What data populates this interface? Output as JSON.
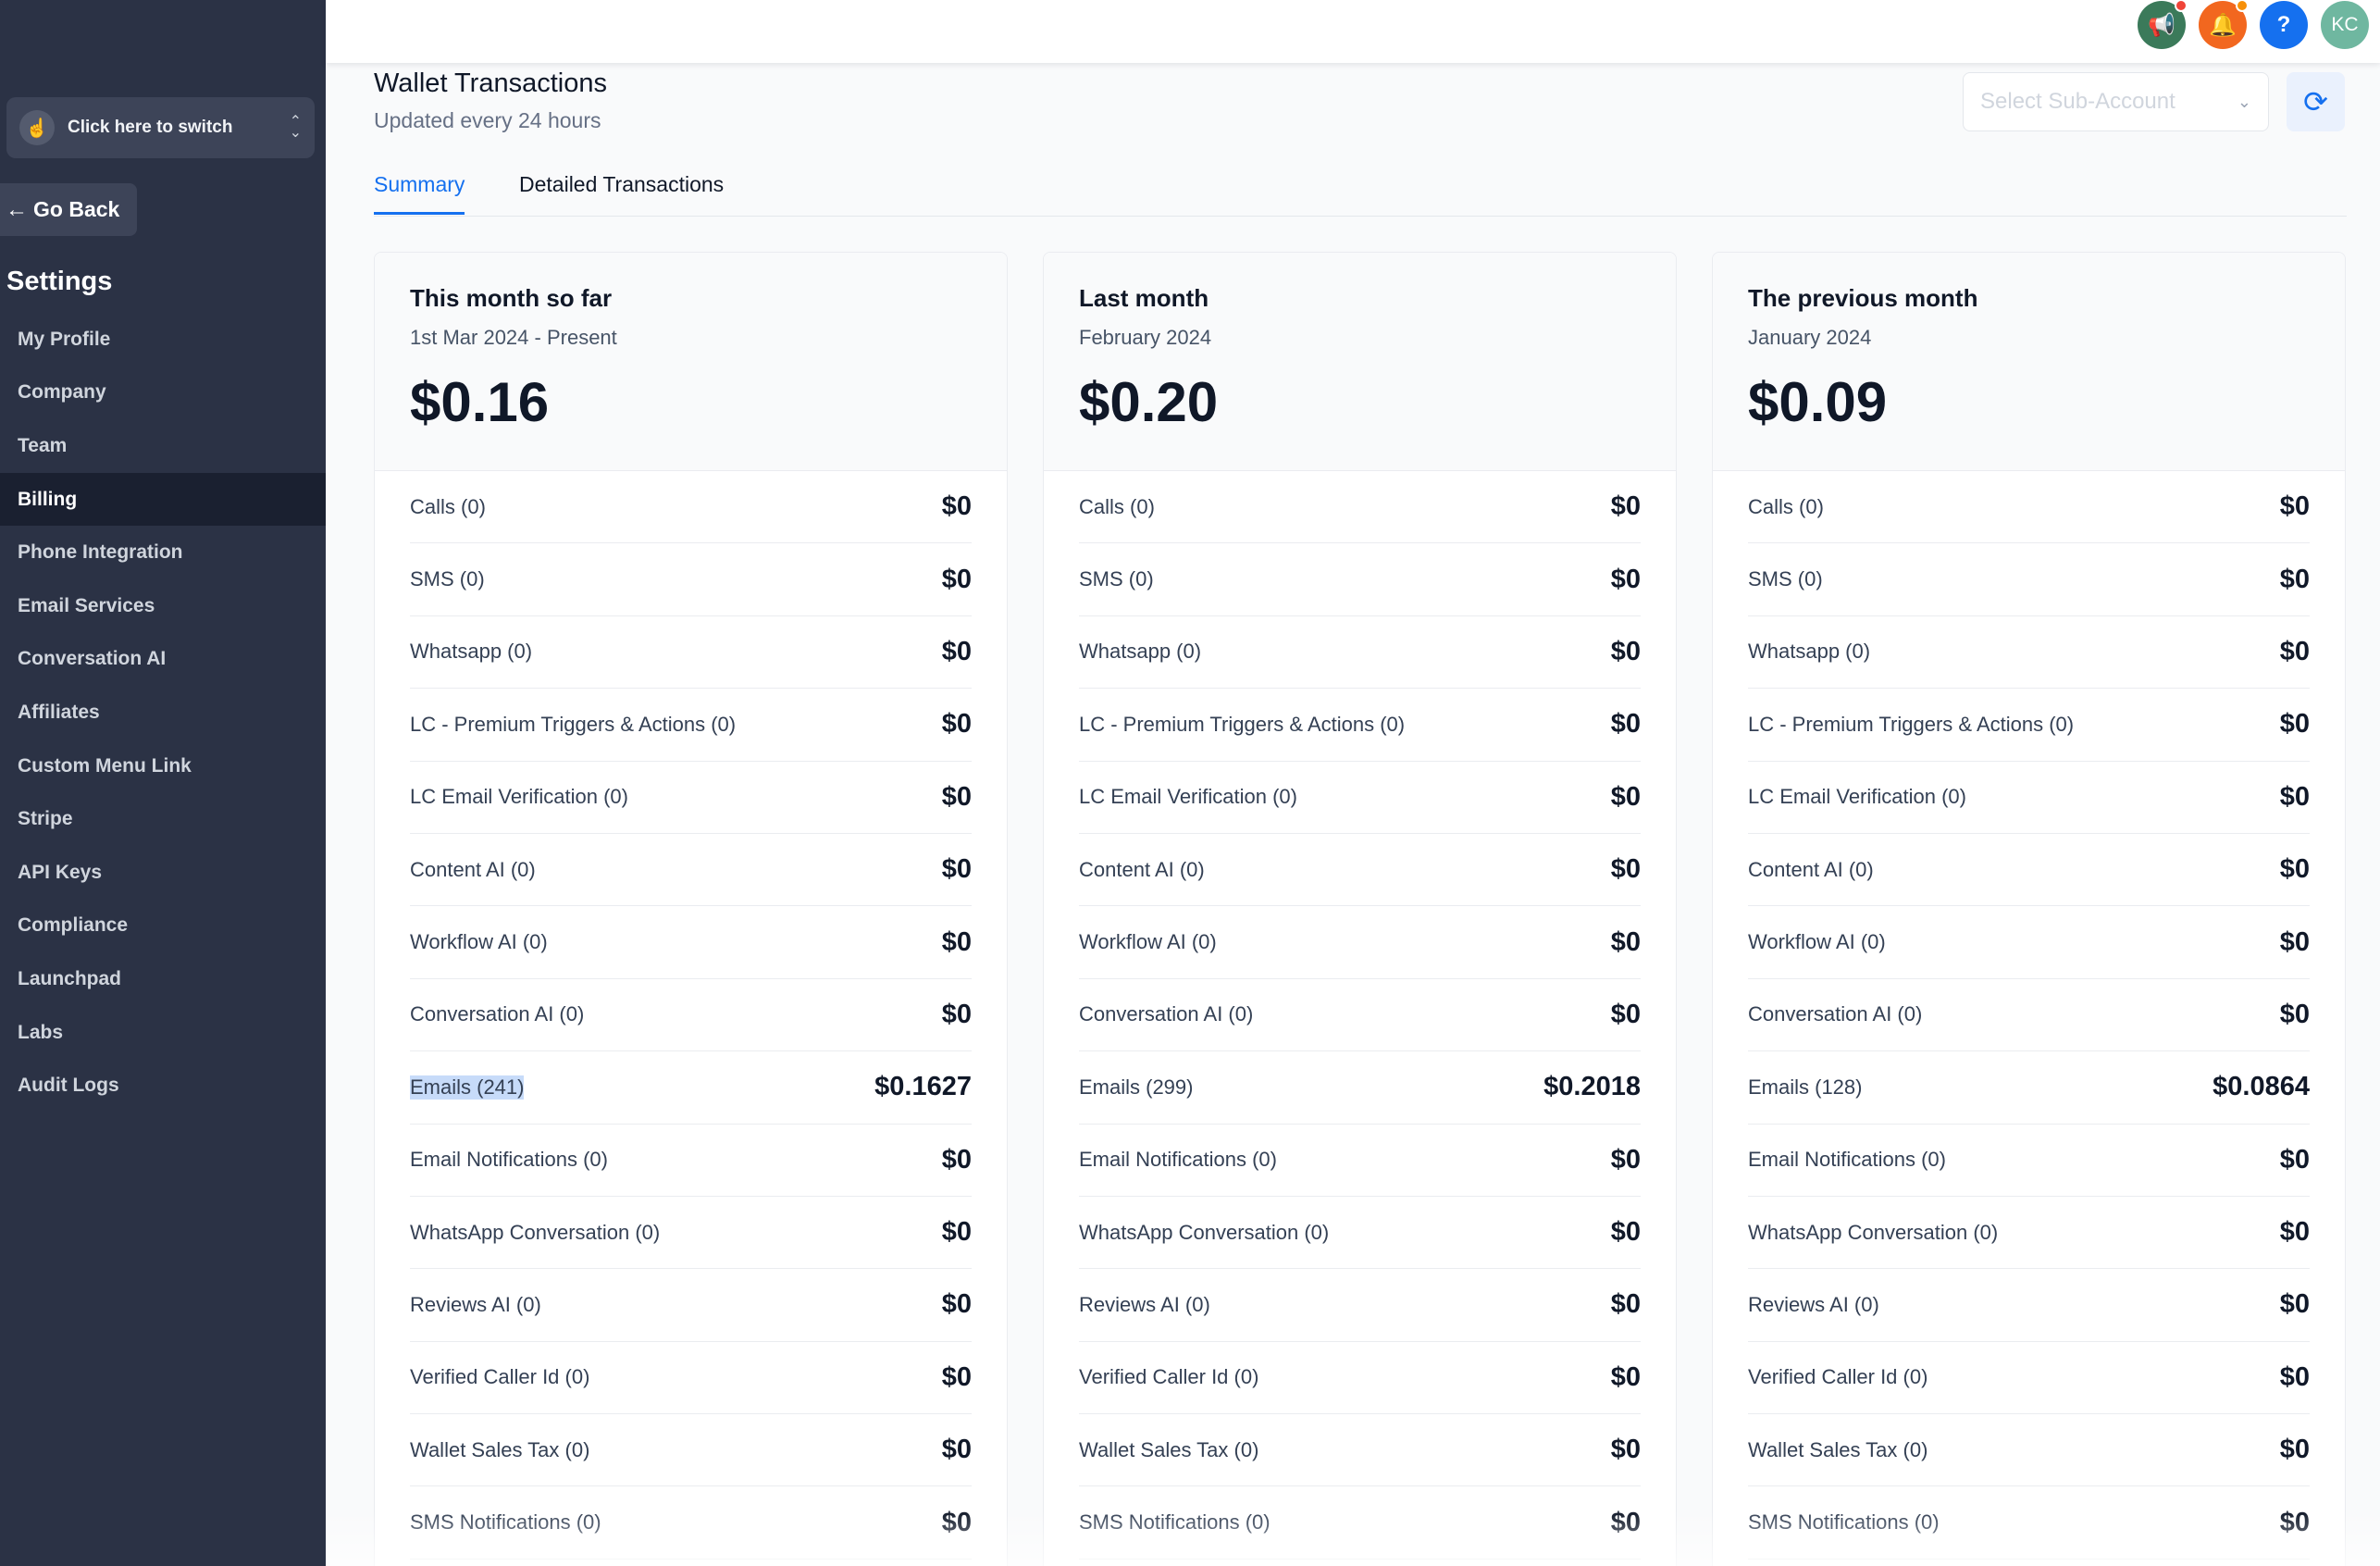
{
  "sidebar": {
    "switcher_label": "Click here to switch",
    "go_back": "Go Back",
    "settings_title": "Settings",
    "items": [
      {
        "label": "My Profile",
        "active": false
      },
      {
        "label": "Company",
        "active": false
      },
      {
        "label": "Team",
        "active": false
      },
      {
        "label": "Billing",
        "active": true
      },
      {
        "label": "Phone Integration",
        "active": false
      },
      {
        "label": "Email Services",
        "active": false
      },
      {
        "label": "Conversation AI",
        "active": false
      },
      {
        "label": "Affiliates",
        "active": false
      },
      {
        "label": "Custom Menu Link",
        "active": false
      },
      {
        "label": "Stripe",
        "active": false
      },
      {
        "label": "API Keys",
        "active": false
      },
      {
        "label": "Compliance",
        "active": false
      },
      {
        "label": "Launchpad",
        "active": false
      },
      {
        "label": "Labs",
        "active": false
      },
      {
        "label": "Audit Logs",
        "active": false
      }
    ]
  },
  "topbar": {
    "icons": [
      {
        "name": "megaphone-icon",
        "glyph": "📢",
        "color": "#3b7a5a",
        "dot": "#f04438"
      },
      {
        "name": "bell-icon",
        "glyph": "🔔",
        "color": "#f2671f",
        "dot": "#f79009"
      },
      {
        "name": "help-icon",
        "glyph": "?",
        "color": "#1570ef",
        "dot": ""
      },
      {
        "name": "avatar",
        "glyph": "KC",
        "color": "#6fb7a0",
        "dot": ""
      }
    ]
  },
  "header": {
    "title": "Wallet Transactions",
    "subtitle": "Updated every 24 hours",
    "subaccount_placeholder": "Select Sub-Account"
  },
  "tabs": [
    {
      "label": "Summary",
      "active": true
    },
    {
      "label": "Detailed Transactions",
      "active": false
    }
  ],
  "cards": [
    {
      "title": "This month so far",
      "subtitle": "1st Mar 2024 - Present",
      "total": "$0.16",
      "rows": [
        {
          "label": "Calls (0)",
          "value": "$0"
        },
        {
          "label": "SMS (0)",
          "value": "$0"
        },
        {
          "label": "Whatsapp (0)",
          "value": "$0"
        },
        {
          "label": "LC - Premium Triggers & Actions (0)",
          "value": "$0"
        },
        {
          "label": "LC Email Verification (0)",
          "value": "$0"
        },
        {
          "label": "Content AI (0)",
          "value": "$0"
        },
        {
          "label": "Workflow AI (0)",
          "value": "$0"
        },
        {
          "label": "Conversation AI (0)",
          "value": "$0"
        },
        {
          "label": "Emails (241)",
          "value": "$0.1627",
          "highlight": true
        },
        {
          "label": "Email Notifications (0)",
          "value": "$0"
        },
        {
          "label": "WhatsApp Conversation (0)",
          "value": "$0"
        },
        {
          "label": "Reviews AI (0)",
          "value": "$0"
        },
        {
          "label": "Verified Caller Id (0)",
          "value": "$0"
        },
        {
          "label": "Wallet Sales Tax (0)",
          "value": "$0"
        },
        {
          "label": "SMS Notifications (0)",
          "value": "$0"
        }
      ]
    },
    {
      "title": "Last month",
      "subtitle": "February 2024",
      "total": "$0.20",
      "rows": [
        {
          "label": "Calls (0)",
          "value": "$0"
        },
        {
          "label": "SMS (0)",
          "value": "$0"
        },
        {
          "label": "Whatsapp (0)",
          "value": "$0"
        },
        {
          "label": "LC - Premium Triggers & Actions (0)",
          "value": "$0"
        },
        {
          "label": "LC Email Verification (0)",
          "value": "$0"
        },
        {
          "label": "Content AI (0)",
          "value": "$0"
        },
        {
          "label": "Workflow AI (0)",
          "value": "$0"
        },
        {
          "label": "Conversation AI (0)",
          "value": "$0"
        },
        {
          "label": "Emails (299)",
          "value": "$0.2018"
        },
        {
          "label": "Email Notifications (0)",
          "value": "$0"
        },
        {
          "label": "WhatsApp Conversation (0)",
          "value": "$0"
        },
        {
          "label": "Reviews AI (0)",
          "value": "$0"
        },
        {
          "label": "Verified Caller Id (0)",
          "value": "$0"
        },
        {
          "label": "Wallet Sales Tax (0)",
          "value": "$0"
        },
        {
          "label": "SMS Notifications (0)",
          "value": "$0"
        }
      ]
    },
    {
      "title": "The previous month",
      "subtitle": "January 2024",
      "total": "$0.09",
      "rows": [
        {
          "label": "Calls (0)",
          "value": "$0"
        },
        {
          "label": "SMS (0)",
          "value": "$0"
        },
        {
          "label": "Whatsapp (0)",
          "value": "$0"
        },
        {
          "label": "LC - Premium Triggers & Actions (0)",
          "value": "$0"
        },
        {
          "label": "LC Email Verification (0)",
          "value": "$0"
        },
        {
          "label": "Content AI (0)",
          "value": "$0"
        },
        {
          "label": "Workflow AI (0)",
          "value": "$0"
        },
        {
          "label": "Conversation AI (0)",
          "value": "$0"
        },
        {
          "label": "Emails (128)",
          "value": "$0.0864"
        },
        {
          "label": "Email Notifications (0)",
          "value": "$0"
        },
        {
          "label": "WhatsApp Conversation (0)",
          "value": "$0"
        },
        {
          "label": "Reviews AI (0)",
          "value": "$0"
        },
        {
          "label": "Verified Caller Id (0)",
          "value": "$0"
        },
        {
          "label": "Wallet Sales Tax (0)",
          "value": "$0"
        },
        {
          "label": "SMS Notifications (0)",
          "value": "$0"
        }
      ]
    }
  ]
}
